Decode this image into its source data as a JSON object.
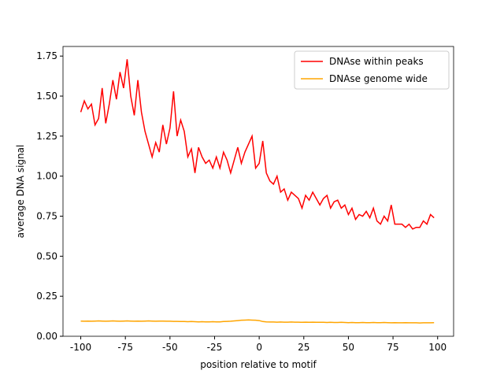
{
  "chart_data": {
    "type": "line",
    "xlabel": "position relative to motif",
    "ylabel": "average DNA signal",
    "x": [
      -100,
      -98,
      -96,
      -94,
      -92,
      -90,
      -88,
      -86,
      -84,
      -82,
      -80,
      -78,
      -76,
      -74,
      -72,
      -70,
      -68,
      -66,
      -64,
      -62,
      -60,
      -58,
      -56,
      -54,
      -52,
      -50,
      -48,
      -46,
      -44,
      -42,
      -40,
      -38,
      -36,
      -34,
      -32,
      -30,
      -28,
      -26,
      -24,
      -22,
      -20,
      -18,
      -16,
      -14,
      -12,
      -10,
      -8,
      -6,
      -4,
      -2,
      0,
      2,
      4,
      6,
      8,
      10,
      12,
      14,
      16,
      18,
      20,
      22,
      24,
      26,
      28,
      30,
      32,
      34,
      36,
      38,
      40,
      42,
      44,
      46,
      48,
      50,
      52,
      54,
      56,
      58,
      60,
      62,
      64,
      66,
      68,
      70,
      72,
      74,
      76,
      78,
      80,
      82,
      84,
      86,
      88,
      90,
      92,
      94,
      96,
      98
    ],
    "series": [
      {
        "name": "DNAse within peaks",
        "color": "#ff0000",
        "values": [
          1.4,
          1.47,
          1.42,
          1.45,
          1.32,
          1.36,
          1.55,
          1.33,
          1.45,
          1.6,
          1.48,
          1.65,
          1.55,
          1.73,
          1.5,
          1.38,
          1.6,
          1.4,
          1.28,
          1.2,
          1.12,
          1.21,
          1.15,
          1.32,
          1.2,
          1.3,
          1.53,
          1.25,
          1.35,
          1.28,
          1.12,
          1.17,
          1.02,
          1.18,
          1.12,
          1.08,
          1.1,
          1.05,
          1.12,
          1.05,
          1.15,
          1.1,
          1.02,
          1.1,
          1.18,
          1.08,
          1.15,
          1.2,
          1.25,
          1.05,
          1.08,
          1.22,
          1.02,
          0.97,
          0.95,
          1.0,
          0.9,
          0.92,
          0.85,
          0.9,
          0.88,
          0.86,
          0.8,
          0.88,
          0.85,
          0.9,
          0.86,
          0.82,
          0.86,
          0.88,
          0.8,
          0.84,
          0.85,
          0.8,
          0.82,
          0.76,
          0.8,
          0.73,
          0.76,
          0.75,
          0.78,
          0.74,
          0.8,
          0.72,
          0.7,
          0.75,
          0.72,
          0.82,
          0.7,
          0.7,
          0.7,
          0.68,
          0.7,
          0.67,
          0.68,
          0.68,
          0.72,
          0.7,
          0.76,
          0.74
        ]
      },
      {
        "name": "DNAse genome wide",
        "color": "#ffa500",
        "values": [
          0.095,
          0.094,
          0.095,
          0.094,
          0.095,
          0.096,
          0.095,
          0.094,
          0.095,
          0.096,
          0.095,
          0.094,
          0.095,
          0.096,
          0.095,
          0.094,
          0.095,
          0.094,
          0.095,
          0.096,
          0.095,
          0.094,
          0.095,
          0.095,
          0.094,
          0.094,
          0.093,
          0.093,
          0.092,
          0.092,
          0.091,
          0.092,
          0.091,
          0.09,
          0.091,
          0.09,
          0.09,
          0.091,
          0.09,
          0.09,
          0.092,
          0.093,
          0.094,
          0.096,
          0.098,
          0.1,
          0.101,
          0.102,
          0.101,
          0.1,
          0.098,
          0.092,
          0.09,
          0.089,
          0.089,
          0.088,
          0.089,
          0.088,
          0.088,
          0.089,
          0.088,
          0.088,
          0.087,
          0.088,
          0.087,
          0.088,
          0.087,
          0.087,
          0.087,
          0.086,
          0.087,
          0.086,
          0.086,
          0.087,
          0.086,
          0.085,
          0.086,
          0.085,
          0.085,
          0.086,
          0.085,
          0.085,
          0.086,
          0.085,
          0.085,
          0.086,
          0.085,
          0.084,
          0.085,
          0.084,
          0.084,
          0.085,
          0.084,
          0.084,
          0.084,
          0.083,
          0.084,
          0.084,
          0.084,
          0.085
        ]
      }
    ],
    "xlim": [
      -109.95,
      108.95
    ],
    "ylim": [
      0,
      1.81
    ],
    "xticks": [
      -100,
      -75,
      -50,
      -25,
      0,
      25,
      50,
      75,
      100
    ],
    "yticks": [
      {
        "value": 0,
        "label": "0.00"
      },
      {
        "value": 0.25,
        "label": "0.25"
      },
      {
        "value": 0.5,
        "label": "0.50"
      },
      {
        "value": 0.75,
        "label": "0.75"
      },
      {
        "value": 1,
        "label": "1.00"
      },
      {
        "value": 1.25,
        "label": "1.25"
      },
      {
        "value": 1.5,
        "label": "1.50"
      },
      {
        "value": 1.75,
        "label": "1.75"
      }
    ],
    "legend": "upper right"
  }
}
